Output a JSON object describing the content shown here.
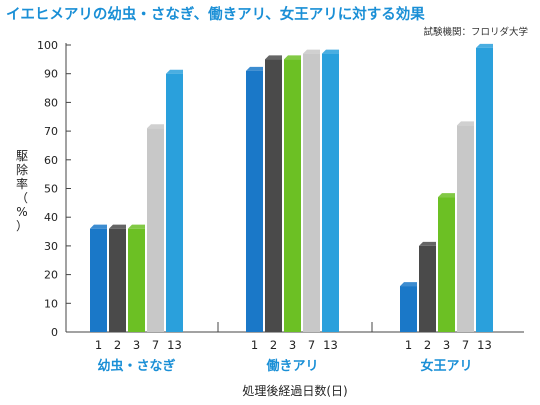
{
  "title": "イエヒメアリの幼虫・さなぎ、働きアリ、女王アリに対する効果",
  "source": "試験機関：フロリダ大学",
  "chart_data": {
    "type": "bar",
    "title": "イエヒメアリの幼虫・さなぎ、働きアリ、女王アリに対する効果",
    "ylabel": "駆除率（%）",
    "xlabel": "処理後経過日数(日)",
    "ylim": [
      0,
      100
    ],
    "yticks": [
      0,
      10,
      20,
      30,
      40,
      50,
      60,
      70,
      80,
      90,
      100
    ],
    "grid": false,
    "legend": "none",
    "days": [
      "1",
      "2",
      "3",
      "7",
      "13"
    ],
    "colors": [
      "#1a78c8",
      "#4a4a4a",
      "#6cc024",
      "#c8c8c8",
      "#2aa0dc"
    ],
    "groups": [
      {
        "label": "幼虫・さなぎ",
        "values": [
          36,
          36,
          36,
          71,
          90
        ]
      },
      {
        "label": "働きアリ",
        "values": [
          91,
          95,
          95,
          97,
          97
        ]
      },
      {
        "label": "女王アリ",
        "values": [
          16,
          30,
          47,
          72,
          99
        ]
      }
    ]
  }
}
